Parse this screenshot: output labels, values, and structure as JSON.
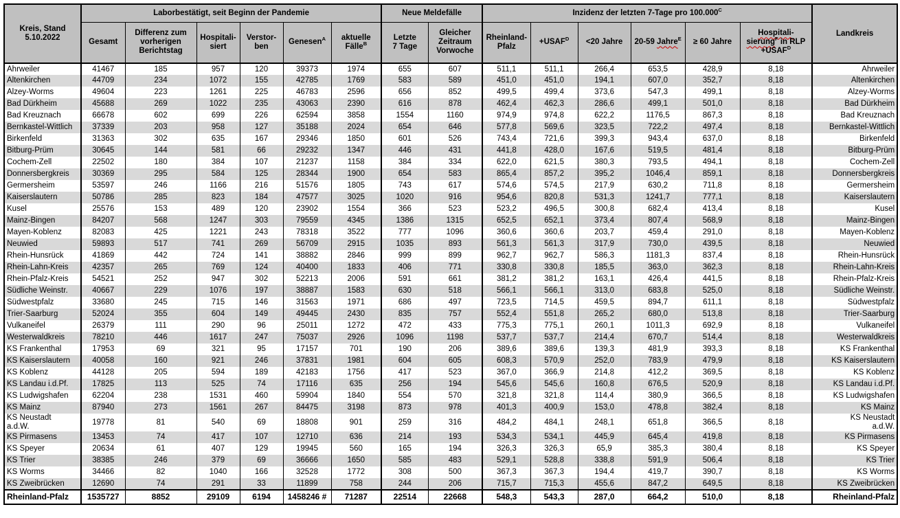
{
  "table": {
    "corner_header": "Kreis, Stand\n5.10.2022",
    "landkreis_header": "Landkreis",
    "groups": [
      {
        "span": 6,
        "segments": [
          {
            "t": "Laborbestätigt, seit Beginn der Pandemie"
          }
        ]
      },
      {
        "span": 2,
        "segments": [
          {
            "t": "Neue Meldefälle"
          }
        ]
      },
      {
        "span": 6,
        "segments": [
          {
            "t": "Inzidenz der letzten 7-Tage pro 100.000",
            "sup": "C"
          }
        ]
      }
    ],
    "columns": [
      {
        "segments": [
          {
            "t": "Gesamt"
          }
        ]
      },
      {
        "segments": [
          {
            "t": "Differenz zum\nvorherigen\nBerichtstag"
          }
        ]
      },
      {
        "segments": [
          {
            "t": "Hospitali-\nsiert"
          }
        ]
      },
      {
        "segments": [
          {
            "t": "Verstor-\nben"
          }
        ]
      },
      {
        "segments": [
          {
            "t": "Genesen",
            "sup": "A"
          }
        ]
      },
      {
        "segments": [
          {
            "t": "aktuelle\nFälle",
            "sup": "B"
          }
        ]
      },
      {
        "segments": [
          {
            "t": "Letzte\n7 Tage"
          }
        ]
      },
      {
        "segments": [
          {
            "t": "Gleicher\nZeitraum\nVorwoche"
          }
        ]
      },
      {
        "segments": [
          {
            "t": "Rheinland-\nPfalz"
          }
        ]
      },
      {
        "segments": [
          {
            "t": "+USAF",
            "sup": "D"
          }
        ]
      },
      {
        "segments": [
          {
            "t": "<20 Jahre"
          }
        ]
      },
      {
        "segments": [
          {
            "t": "20-59 "
          },
          {
            "t": "Jahre",
            "wavy": true,
            "sup": "E"
          }
        ]
      },
      {
        "segments": [
          {
            "t": "≥ 60 Jahre"
          }
        ]
      },
      {
        "segments": [
          {
            "t": "Hospitali-\nsierung",
            "wavy": true,
            "sup": "F"
          },
          {
            "t": " in RLP\n+USAF",
            "sup": "D"
          }
        ]
      }
    ],
    "rows": [
      {
        "kreis": "Ahrweiler",
        "values": [
          "41467",
          "185",
          "957",
          "120",
          "39373",
          "1974",
          "655",
          "607",
          "511,1",
          "511,1",
          "266,4",
          "653,5",
          "428,9",
          "8,18"
        ],
        "landkreis": "Ahrweiler"
      },
      {
        "kreis": "Altenkirchen",
        "values": [
          "44709",
          "234",
          "1072",
          "155",
          "42785",
          "1769",
          "583",
          "589",
          "451,0",
          "451,0",
          "194,1",
          "607,0",
          "352,7",
          "8,18"
        ],
        "landkreis": "Altenkirchen"
      },
      {
        "kreis": "Alzey-Worms",
        "values": [
          "49604",
          "223",
          "1261",
          "225",
          "46783",
          "2596",
          "656",
          "852",
          "499,5",
          "499,4",
          "373,6",
          "547,3",
          "499,1",
          "8,18"
        ],
        "landkreis": "Alzey-Worms"
      },
      {
        "kreis": "Bad Dürkheim",
        "values": [
          "45688",
          "269",
          "1022",
          "235",
          "43063",
          "2390",
          "616",
          "878",
          "462,4",
          "462,3",
          "286,6",
          "499,1",
          "501,0",
          "8,18"
        ],
        "landkreis": "Bad Dürkheim"
      },
      {
        "kreis": "Bad Kreuznach",
        "values": [
          "66678",
          "602",
          "699",
          "226",
          "62594",
          "3858",
          "1554",
          "1160",
          "974,9",
          "974,8",
          "622,2",
          "1176,5",
          "867,3",
          "8,18"
        ],
        "landkreis": "Bad Kreuznach"
      },
      {
        "kreis": "Bernkastel-Wittlich",
        "values": [
          "37339",
          "203",
          "958",
          "127",
          "35188",
          "2024",
          "654",
          "646",
          "577,8",
          "569,6",
          "323,5",
          "722,2",
          "497,4",
          "8,18"
        ],
        "landkreis": "Bernkastel-Wittlich"
      },
      {
        "kreis": "Birkenfeld",
        "values": [
          "31363",
          "302",
          "635",
          "167",
          "29346",
          "1850",
          "601",
          "526",
          "743,4",
          "721,6",
          "399,3",
          "943,4",
          "637,0",
          "8,18"
        ],
        "landkreis": "Birkenfeld"
      },
      {
        "kreis": "Bitburg-Prüm",
        "values": [
          "30645",
          "144",
          "581",
          "66",
          "29232",
          "1347",
          "446",
          "431",
          "441,8",
          "428,0",
          "167,6",
          "519,5",
          "481,4",
          "8,18"
        ],
        "landkreis": "Bitburg-Prüm"
      },
      {
        "kreis": "Cochem-Zell",
        "values": [
          "22502",
          "180",
          "384",
          "107",
          "21237",
          "1158",
          "384",
          "334",
          "622,0",
          "621,5",
          "380,3",
          "793,5",
          "494,1",
          "8,18"
        ],
        "landkreis": "Cochem-Zell"
      },
      {
        "kreis": "Donnersbergkreis",
        "values": [
          "30369",
          "295",
          "584",
          "125",
          "28344",
          "1900",
          "654",
          "583",
          "865,4",
          "857,2",
          "395,2",
          "1046,4",
          "859,1",
          "8,18"
        ],
        "landkreis": "Donnersbergkreis"
      },
      {
        "kreis": "Germersheim",
        "values": [
          "53597",
          "246",
          "1166",
          "216",
          "51576",
          "1805",
          "743",
          "617",
          "574,6",
          "574,5",
          "217,9",
          "630,2",
          "711,8",
          "8,18"
        ],
        "landkreis": "Germersheim"
      },
      {
        "kreis": "Kaiserslautern",
        "values": [
          "50786",
          "285",
          "823",
          "184",
          "47577",
          "3025",
          "1020",
          "916",
          "954,6",
          "820,8",
          "531,3",
          "1241,7",
          "777,1",
          "8,18"
        ],
        "landkreis": "Kaiserslautern"
      },
      {
        "kreis": "Kusel",
        "values": [
          "25576",
          "153",
          "489",
          "120",
          "23902",
          "1554",
          "366",
          "523",
          "523,2",
          "496,5",
          "300,8",
          "682,4",
          "413,4",
          "8,18"
        ],
        "landkreis": "Kusel"
      },
      {
        "kreis": "Mainz-Bingen",
        "values": [
          "84207",
          "568",
          "1247",
          "303",
          "79559",
          "4345",
          "1386",
          "1315",
          "652,5",
          "652,1",
          "373,4",
          "807,4",
          "568,9",
          "8,18"
        ],
        "landkreis": "Mainz-Bingen"
      },
      {
        "kreis": "Mayen-Koblenz",
        "values": [
          "82083",
          "425",
          "1221",
          "243",
          "78318",
          "3522",
          "777",
          "1096",
          "360,6",
          "360,6",
          "203,7",
          "459,4",
          "291,0",
          "8,18"
        ],
        "landkreis": "Mayen-Koblenz"
      },
      {
        "kreis": "Neuwied",
        "values": [
          "59893",
          "517",
          "741",
          "269",
          "56709",
          "2915",
          "1035",
          "893",
          "561,3",
          "561,3",
          "317,9",
          "730,0",
          "439,5",
          "8,18"
        ],
        "landkreis": "Neuwied"
      },
      {
        "kreis": "Rhein-Hunsrück",
        "values": [
          "41869",
          "442",
          "724",
          "141",
          "38882",
          "2846",
          "999",
          "899",
          "962,7",
          "962,7",
          "586,3",
          "1181,3",
          "837,4",
          "8,18"
        ],
        "landkreis": "Rhein-Hunsrück"
      },
      {
        "kreis": "Rhein-Lahn-Kreis",
        "values": [
          "42357",
          "265",
          "769",
          "124",
          "40400",
          "1833",
          "406",
          "771",
          "330,8",
          "330,8",
          "185,5",
          "363,0",
          "362,3",
          "8,18"
        ],
        "landkreis": "Rhein-Lahn-Kreis"
      },
      {
        "kreis": "Rhein-Pfalz-Kreis",
        "values": [
          "54521",
          "252",
          "947",
          "302",
          "52213",
          "2006",
          "591",
          "661",
          "381,2",
          "381,2",
          "163,1",
          "426,4",
          "441,5",
          "8,18"
        ],
        "landkreis": "Rhein-Pfalz-Kreis"
      },
      {
        "kreis": "Südliche Weinstr.",
        "values": [
          "40667",
          "229",
          "1076",
          "197",
          "38887",
          "1583",
          "630",
          "518",
          "566,1",
          "566,1",
          "313,0",
          "683,8",
          "525,0",
          "8,18"
        ],
        "landkreis": "Südliche Weinstr."
      },
      {
        "kreis": "Südwestpfalz",
        "values": [
          "33680",
          "245",
          "715",
          "146",
          "31563",
          "1971",
          "686",
          "497",
          "723,5",
          "714,5",
          "459,5",
          "894,7",
          "611,1",
          "8,18"
        ],
        "landkreis": "Südwestpfalz"
      },
      {
        "kreis": "Trier-Saarburg",
        "values": [
          "52024",
          "355",
          "604",
          "149",
          "49445",
          "2430",
          "835",
          "757",
          "552,4",
          "551,8",
          "265,2",
          "680,0",
          "513,8",
          "8,18"
        ],
        "landkreis": "Trier-Saarburg"
      },
      {
        "kreis": "Vulkaneifel",
        "values": [
          "26379",
          "111",
          "290",
          "96",
          "25011",
          "1272",
          "472",
          "433",
          "775,3",
          "775,1",
          "260,1",
          "1011,3",
          "692,9",
          "8,18"
        ],
        "landkreis": "Vulkaneifel"
      },
      {
        "kreis": "Westerwaldkreis",
        "values": [
          "78210",
          "446",
          "1617",
          "247",
          "75037",
          "2926",
          "1096",
          "1198",
          "537,7",
          "537,7",
          "214,4",
          "670,7",
          "514,4",
          "8,18"
        ],
        "landkreis": "Westerwaldkreis"
      },
      {
        "kreis": "KS Frankenthal",
        "values": [
          "17953",
          "69",
          "321",
          "95",
          "17157",
          "701",
          "190",
          "206",
          "389,6",
          "389,6",
          "139,3",
          "481,9",
          "393,3",
          "8,18"
        ],
        "landkreis": "KS Frankenthal"
      },
      {
        "kreis": "KS Kaiserslautern",
        "values": [
          "40058",
          "160",
          "921",
          "246",
          "37831",
          "1981",
          "604",
          "605",
          "608,3",
          "570,9",
          "252,0",
          "783,9",
          "479,9",
          "8,18"
        ],
        "landkreis": "KS Kaiserslautern"
      },
      {
        "kreis": "KS Koblenz",
        "values": [
          "44128",
          "205",
          "594",
          "189",
          "42183",
          "1756",
          "417",
          "523",
          "367,0",
          "366,9",
          "214,8",
          "412,2",
          "369,5",
          "8,18"
        ],
        "landkreis": "KS Koblenz"
      },
      {
        "kreis": "KS Landau i.d.Pf.",
        "values": [
          "17825",
          "113",
          "525",
          "74",
          "17116",
          "635",
          "256",
          "194",
          "545,6",
          "545,6",
          "160,8",
          "676,5",
          "520,9",
          "8,18"
        ],
        "landkreis": "KS Landau i.d.Pf."
      },
      {
        "kreis": "KS Ludwigshafen",
        "values": [
          "62204",
          "238",
          "1531",
          "460",
          "59904",
          "1840",
          "554",
          "570",
          "321,8",
          "321,8",
          "114,4",
          "380,9",
          "366,5",
          "8,18"
        ],
        "landkreis": "KS Ludwigshafen"
      },
      {
        "kreis": "KS Mainz",
        "values": [
          "87940",
          "273",
          "1561",
          "267",
          "84475",
          "3198",
          "873",
          "978",
          "401,3",
          "400,9",
          "153,0",
          "478,8",
          "382,4",
          "8,18"
        ],
        "landkreis": "KS Mainz"
      },
      {
        "kreis": "KS Neustadt\na.d.W.",
        "values": [
          "19778",
          "81",
          "540",
          "69",
          "18808",
          "901",
          "259",
          "316",
          "484,2",
          "484,1",
          "248,1",
          "651,8",
          "366,5",
          "8,18"
        ],
        "landkreis": "KS Neustadt\na.d.W."
      },
      {
        "kreis": "KS Pirmasens",
        "values": [
          "13453",
          "74",
          "417",
          "107",
          "12710",
          "636",
          "214",
          "193",
          "534,3",
          "534,1",
          "445,9",
          "645,4",
          "419,8",
          "8,18"
        ],
        "landkreis": "KS Pirmasens"
      },
      {
        "kreis": "KS Speyer",
        "values": [
          "20634",
          "61",
          "407",
          "129",
          "19945",
          "560",
          "165",
          "194",
          "326,3",
          "326,3",
          "65,9",
          "385,3",
          "380,4",
          "8,18"
        ],
        "landkreis": "KS Speyer"
      },
      {
        "kreis": "KS Trier",
        "values": [
          "38385",
          "246",
          "379",
          "69",
          "36666",
          "1650",
          "585",
          "483",
          "529,1",
          "528,8",
          "338,8",
          "591,9",
          "506,4",
          "8,18"
        ],
        "landkreis": "KS Trier"
      },
      {
        "kreis": "KS Worms",
        "values": [
          "34466",
          "82",
          "1040",
          "166",
          "32528",
          "1772",
          "308",
          "500",
          "367,3",
          "367,3",
          "194,4",
          "419,7",
          "390,7",
          "8,18"
        ],
        "landkreis": "KS Worms"
      },
      {
        "kreis": "KS Zweibrücken",
        "values": [
          "12690",
          "74",
          "291",
          "33",
          "11899",
          "758",
          "244",
          "206",
          "715,7",
          "715,3",
          "455,6",
          "847,2",
          "649,5",
          "8,18"
        ],
        "landkreis": "KS Zweibrücken"
      }
    ],
    "total_row": {
      "kreis": "Rheinland-Pfalz",
      "values": [
        "1535727",
        "8852",
        "29109",
        "6194",
        "1458246 #",
        "71287",
        "22514",
        "22668",
        "548,3",
        "543,3",
        "287,0",
        "664,2",
        "510,0",
        "8,18"
      ],
      "landkreis": "Rheinland-Pfalz"
    },
    "colors": {
      "header_bg": "#c0c0c0",
      "stripe_bg": "#d9d9d9",
      "border": "#000000",
      "spellcheck": "#cc0000"
    }
  }
}
